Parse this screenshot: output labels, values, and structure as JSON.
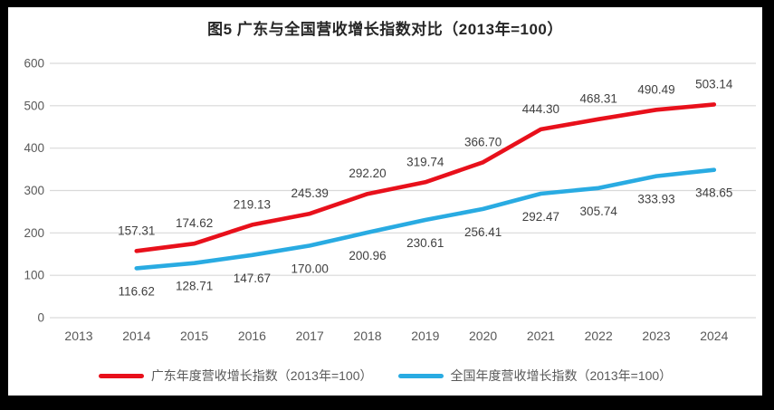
{
  "chart_data": {
    "type": "line",
    "title": "图5  广东与全国营收增长指数对比（2013年=100）",
    "categories": [
      "2013",
      "2014",
      "2015",
      "2016",
      "2017",
      "2018",
      "2019",
      "2020",
      "2021",
      "2022",
      "2023",
      "2024"
    ],
    "series": [
      {
        "name": "广东年度营收增长指数（2013年=100）",
        "color": "#e8101b",
        "label_position": "above",
        "values": [
          null,
          157.31,
          174.62,
          219.13,
          245.39,
          292.2,
          319.74,
          366.7,
          444.3,
          468.31,
          490.49,
          503.14
        ]
      },
      {
        "name": "全国年度营收增长指数（2013年=100）",
        "color": "#29abe2",
        "label_position": "below",
        "values": [
          null,
          116.62,
          128.71,
          147.67,
          170.0,
          200.96,
          230.61,
          256.41,
          292.47,
          305.74,
          333.93,
          348.65
        ]
      }
    ],
    "y_axis": {
      "min": 0,
      "max": 600,
      "step": 100,
      "ticks": [
        "0",
        "100",
        "200",
        "300",
        "400",
        "500",
        "600"
      ]
    },
    "xlabel": "",
    "ylabel": "",
    "grid": true,
    "legend_position": "bottom"
  },
  "styles": {
    "frame_color": "#000000",
    "panel_color": "#ffffff",
    "grid_color": "#d9d9d9",
    "axis_text_color": "#595959",
    "data_label_color": "#3f3f3f",
    "title_color": "#262626"
  }
}
